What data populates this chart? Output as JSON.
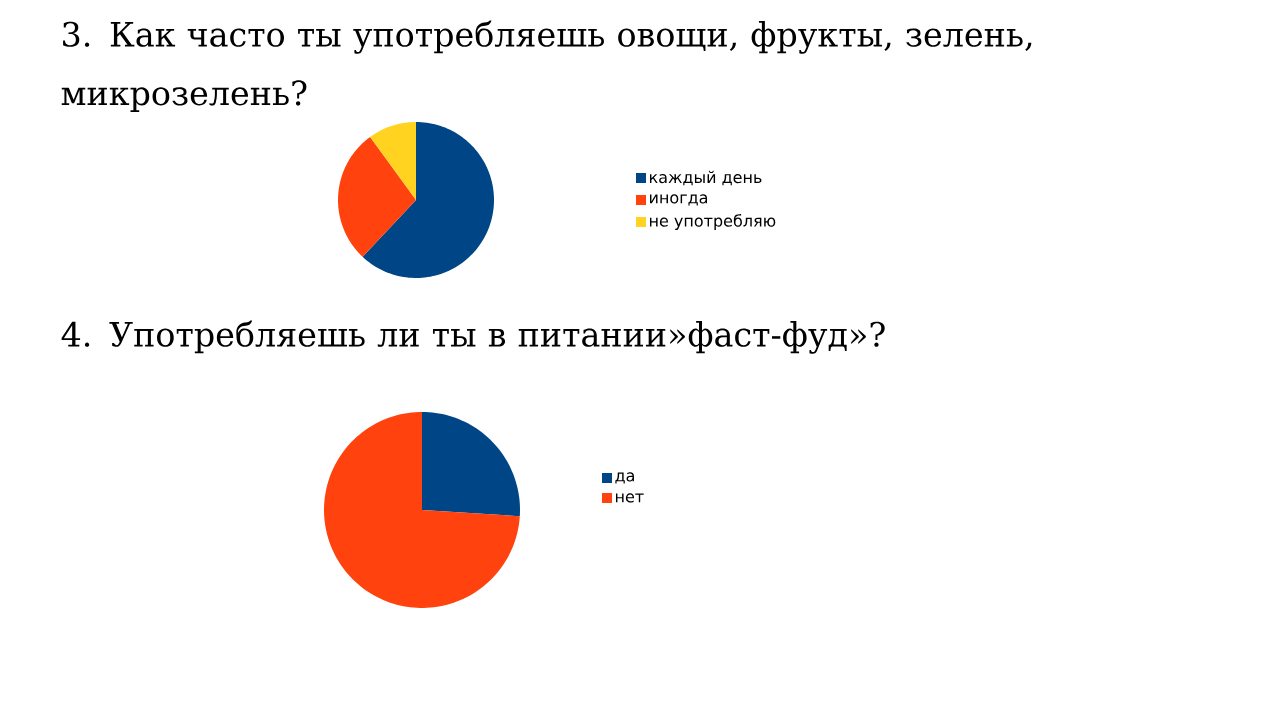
{
  "chart_data": [
    {
      "type": "pie",
      "title": "3. Как часто ты употребляешь овощи, фрукты, зелень, микрозелень?",
      "categories": [
        "каждый день",
        "иногда",
        "не употребляю"
      ],
      "values": [
        62,
        28,
        10
      ],
      "colors": [
        "#004586",
        "#ff420e",
        "#ffd320"
      ],
      "legend": "right"
    },
    {
      "type": "pie",
      "title": "4. Употребляешь ли ты в питании»фаст-фуд»?",
      "categories": [
        "да",
        "нет"
      ],
      "values": [
        26,
        74
      ],
      "colors": [
        "#004586",
        "#ff420e"
      ],
      "legend": "right"
    }
  ]
}
